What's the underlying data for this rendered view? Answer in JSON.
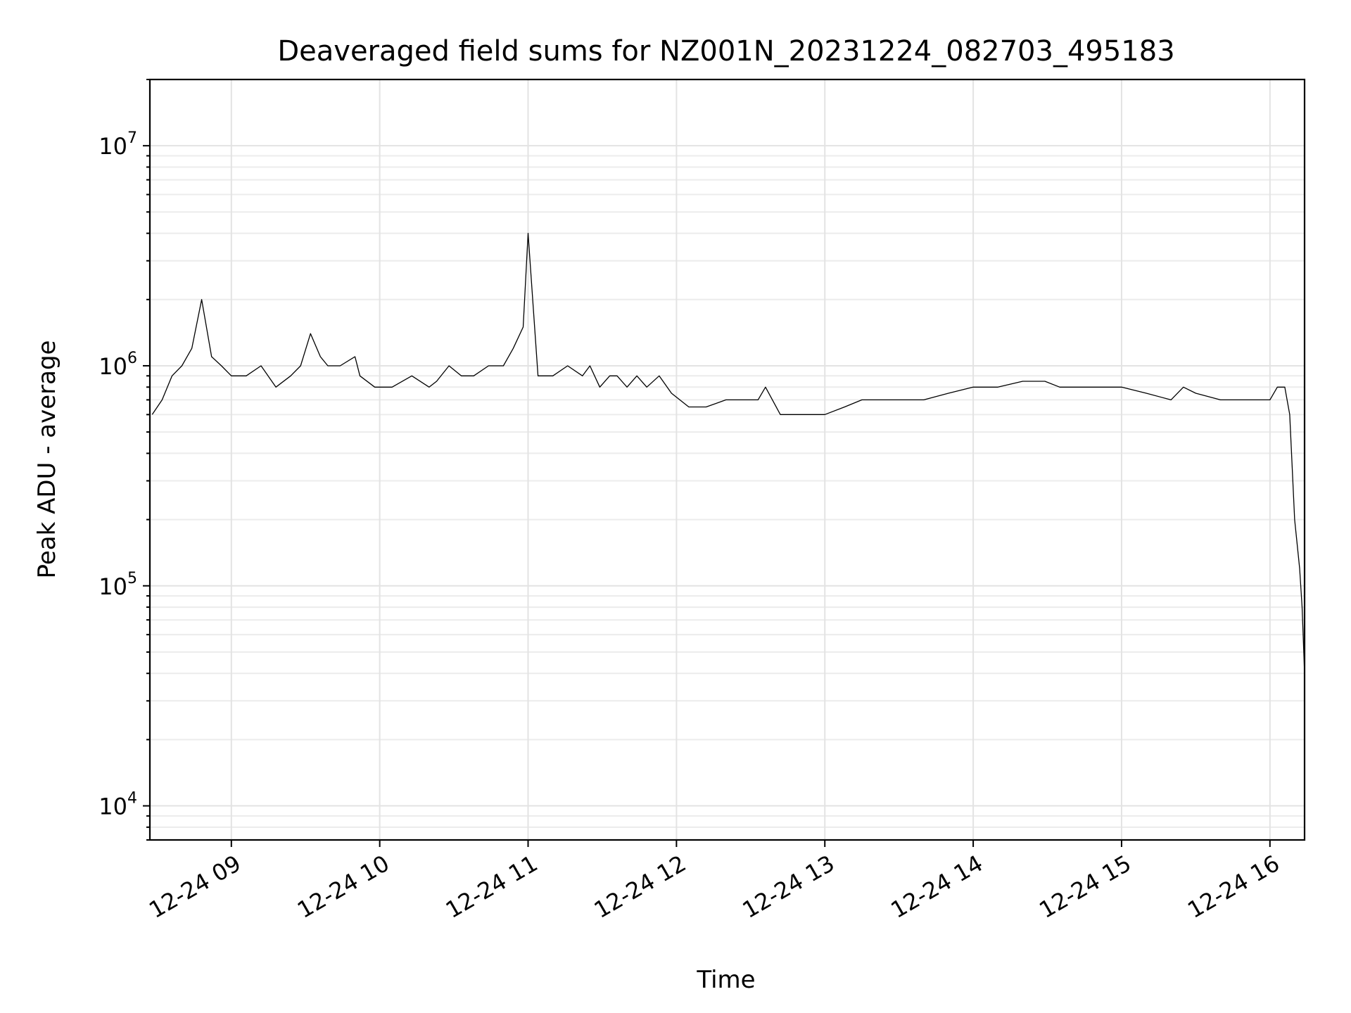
{
  "chart_data": {
    "type": "line",
    "title": "Deaveraged field sums for NZ001N_20231224_082703_495183",
    "xlabel": "Time",
    "ylabel": "Peak ADU - average",
    "yscale": "log",
    "ylim": [
      7000,
      20000000
    ],
    "xlim": [
      "2023-12-24 08:27:03",
      "2023-12-24 16:14:00"
    ],
    "grid": true,
    "legend": "none",
    "line_color": "#000000",
    "x_ticks": [
      {
        "label": "12-24 09",
        "t": "2023-12-24 09:00"
      },
      {
        "label": "12-24 10",
        "t": "2023-12-24 10:00"
      },
      {
        "label": "12-24 11",
        "t": "2023-12-24 11:00"
      },
      {
        "label": "12-24 12",
        "t": "2023-12-24 12:00"
      },
      {
        "label": "12-24 13",
        "t": "2023-12-24 13:00"
      },
      {
        "label": "12-24 14",
        "t": "2023-12-24 14:00"
      },
      {
        "label": "12-24 15",
        "t": "2023-12-24 15:00"
      },
      {
        "label": "12-24 16",
        "t": "2023-12-24 16:00"
      }
    ],
    "y_ticks": [
      {
        "base": "10",
        "exp": "4",
        "value": 10000
      },
      {
        "base": "10",
        "exp": "5",
        "value": 100000
      },
      {
        "base": "10",
        "exp": "6",
        "value": 1000000
      },
      {
        "base": "10",
        "exp": "7",
        "value": 10000000
      }
    ],
    "series": [
      {
        "x": [
          "2023-12-24 08:28",
          "2023-12-24 08:32",
          "2023-12-24 08:36",
          "2023-12-24 08:40",
          "2023-12-24 08:44",
          "2023-12-24 08:48",
          "2023-12-24 08:52",
          "2023-12-24 08:56",
          "2023-12-24 09:00",
          "2023-12-24 09:06",
          "2023-12-24 09:12",
          "2023-12-24 09:18",
          "2023-12-24 09:24",
          "2023-12-24 09:28",
          "2023-12-24 09:32",
          "2023-12-24 09:36",
          "2023-12-24 09:39",
          "2023-12-24 09:44",
          "2023-12-24 09:50",
          "2023-12-24 09:52",
          "2023-12-24 09:58",
          "2023-12-24 10:05",
          "2023-12-24 10:13",
          "2023-12-24 10:20",
          "2023-12-24 10:23",
          "2023-12-24 10:28",
          "2023-12-24 10:33",
          "2023-12-24 10:38",
          "2023-12-24 10:44",
          "2023-12-24 10:50",
          "2023-12-24 10:54",
          "2023-12-24 10:58",
          "2023-12-24 11:00",
          "2023-12-24 11:04",
          "2023-12-24 11:10",
          "2023-12-24 11:16",
          "2023-12-24 11:22",
          "2023-12-24 11:25",
          "2023-12-24 11:29",
          "2023-12-24 11:33",
          "2023-12-24 11:36",
          "2023-12-24 11:40",
          "2023-12-24 11:44",
          "2023-12-24 11:48",
          "2023-12-24 11:53",
          "2023-12-24 11:58",
          "2023-12-24 12:05",
          "2023-12-24 12:12",
          "2023-12-24 12:20",
          "2023-12-24 12:28",
          "2023-12-24 12:33",
          "2023-12-24 12:36",
          "2023-12-24 12:42",
          "2023-12-24 12:48",
          "2023-12-24 12:54",
          "2023-12-24 13:00",
          "2023-12-24 13:08",
          "2023-12-24 13:15",
          "2023-12-24 13:22",
          "2023-12-24 13:30",
          "2023-12-24 13:40",
          "2023-12-24 13:50",
          "2023-12-24 14:00",
          "2023-12-24 14:10",
          "2023-12-24 14:20",
          "2023-12-24 14:29",
          "2023-12-24 14:35",
          "2023-12-24 14:45",
          "2023-12-24 14:55",
          "2023-12-24 15:00",
          "2023-12-24 15:10",
          "2023-12-24 15:20",
          "2023-12-24 15:25",
          "2023-12-24 15:30",
          "2023-12-24 15:40",
          "2023-12-24 15:50",
          "2023-12-24 16:00",
          "2023-12-24 16:03",
          "2023-12-24 16:06",
          "2023-12-24 16:08",
          "2023-12-24 16:10",
          "2023-12-24 16:12",
          "2023-12-24 16:13",
          "2023-12-24 16:14"
        ],
        "y": [
          600000,
          700000,
          900000,
          1000000,
          1200000,
          2000000,
          1100000,
          1000000,
          900000,
          900000,
          1000000,
          800000,
          900000,
          1000000,
          1400000,
          1100000,
          1000000,
          1000000,
          1100000,
          900000,
          800000,
          800000,
          900000,
          800000,
          850000,
          1000000,
          900000,
          900000,
          1000000,
          1000000,
          1200000,
          1500000,
          4000000,
          900000,
          900000,
          1000000,
          900000,
          1000000,
          800000,
          900000,
          900000,
          800000,
          900000,
          800000,
          900000,
          750000,
          650000,
          650000,
          700000,
          700000,
          700000,
          800000,
          600000,
          600000,
          600000,
          600000,
          650000,
          700000,
          700000,
          700000,
          700000,
          750000,
          800000,
          800000,
          850000,
          850000,
          800000,
          800000,
          800000,
          800000,
          750000,
          700000,
          800000,
          750000,
          700000,
          700000,
          700000,
          800000,
          800000,
          600000,
          200000,
          120000,
          80000,
          40000
        ]
      }
    ]
  }
}
